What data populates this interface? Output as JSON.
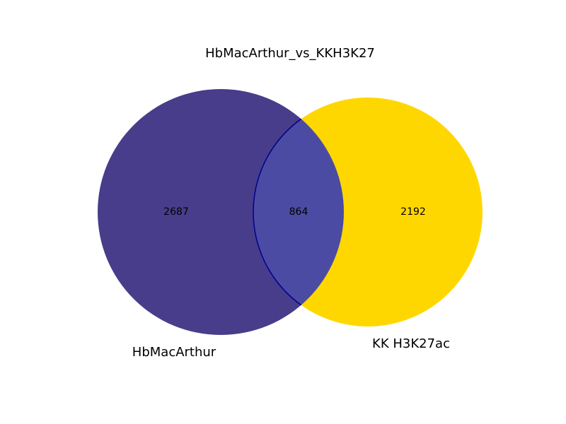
{
  "chart_data": {
    "type": "venn",
    "title": "HbMacArthur_vs_KKH3K27",
    "sets": [
      {
        "name": "HbMacArthur",
        "only": 2687,
        "color": "#483D8B"
      },
      {
        "name": "KK H3K27ac",
        "only": 2192,
        "color": "#FFD700"
      }
    ],
    "intersection": 864,
    "intersection_color": "#4B4BA3",
    "outline_color": "#00008B"
  }
}
